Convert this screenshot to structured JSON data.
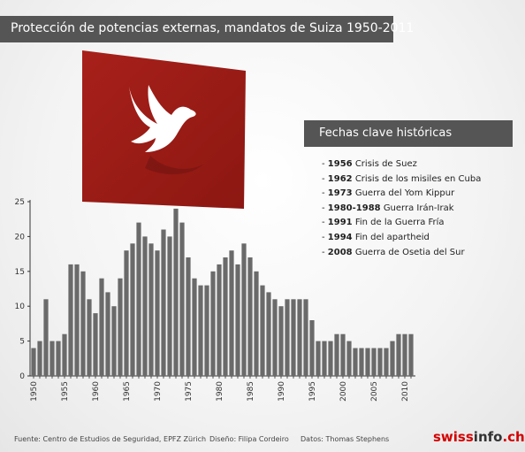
{
  "title": "Protección de potencias externas, mandatos de Suiza 1950-2011",
  "events_title": "Fechas clave históricas",
  "events": [
    {
      "years": "1956",
      "text": "Crisis de Suez"
    },
    {
      "years": "1962",
      "text": "Crisis de los misiles en Cuba"
    },
    {
      "years": "1973",
      "text": "Guerra del Yom Kippur"
    },
    {
      "years": "1980-1988",
      "text": "Guerra Irán-Irak"
    },
    {
      "years": "1991",
      "text": "Fin de la Guerra Fría"
    },
    {
      "years": "1994",
      "text": "Fin del apartheid"
    },
    {
      "years": "2008",
      "text": "Guerra de Osetia del Sur"
    }
  ],
  "footer": {
    "source": "Fuente: Centro de Estudios de Seguridad, EPFZ Zürich",
    "design": "Diseño: Filipa Cordeiro",
    "data": "Datos: Thomas Stephens"
  },
  "logo": {
    "part1": "swiss",
    "part2": "info",
    "part3": ".ch"
  },
  "colors": {
    "bar": "#6a6a6a",
    "flag": "#a8201a",
    "title_bg": "#555555"
  },
  "chart_data": {
    "type": "bar",
    "x": [
      1950,
      1951,
      1952,
      1953,
      1954,
      1955,
      1956,
      1957,
      1958,
      1959,
      1960,
      1961,
      1962,
      1963,
      1964,
      1965,
      1966,
      1967,
      1968,
      1969,
      1970,
      1971,
      1972,
      1973,
      1974,
      1975,
      1976,
      1977,
      1978,
      1979,
      1980,
      1981,
      1982,
      1983,
      1984,
      1985,
      1986,
      1987,
      1988,
      1989,
      1990,
      1991,
      1992,
      1993,
      1994,
      1995,
      1996,
      1997,
      1998,
      1999,
      2000,
      2001,
      2002,
      2003,
      2004,
      2005,
      2006,
      2007,
      2008,
      2009,
      2010,
      2011
    ],
    "values": [
      4,
      5,
      11,
      5,
      5,
      6,
      16,
      16,
      15,
      11,
      9,
      14,
      12,
      10,
      14,
      18,
      19,
      22,
      20,
      19,
      18,
      21,
      20,
      24,
      22,
      17,
      14,
      13,
      13,
      15,
      16,
      17,
      18,
      16,
      19,
      17,
      15,
      13,
      12,
      11,
      10,
      11,
      11,
      11,
      11,
      8,
      5,
      5,
      5,
      6,
      6,
      5,
      4,
      4,
      4,
      4,
      4,
      4,
      5,
      6,
      6,
      6
    ],
    "xtick_labels": [
      "1950",
      "1955",
      "1960",
      "1965",
      "1970",
      "1975",
      "1980",
      "1985",
      "1990",
      "1995",
      "2000",
      "2005",
      "2010"
    ],
    "ytick_labels": [
      "0",
      "5",
      "10",
      "15",
      "20",
      "25"
    ],
    "ylim": [
      0,
      25
    ],
    "grid": false
  }
}
